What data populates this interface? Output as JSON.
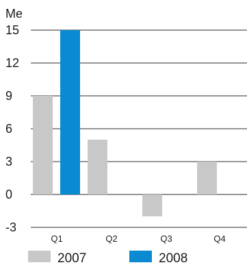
{
  "chart_data": {
    "type": "bar",
    "ylabel": "Me",
    "categories": [
      "Q1",
      "Q2",
      "Q3",
      "Q4"
    ],
    "series": [
      {
        "name": "2007",
        "color": "#c8c8c8",
        "values": [
          9,
          5,
          -2,
          3
        ]
      },
      {
        "name": "2008",
        "color": "#0a8bd1",
        "values": [
          15,
          null,
          null,
          null
        ]
      }
    ],
    "yticks": [
      -3,
      0,
      3,
      6,
      9,
      12,
      15
    ],
    "ylim": [
      -3,
      15
    ],
    "grid": true,
    "legend": "bottom"
  }
}
